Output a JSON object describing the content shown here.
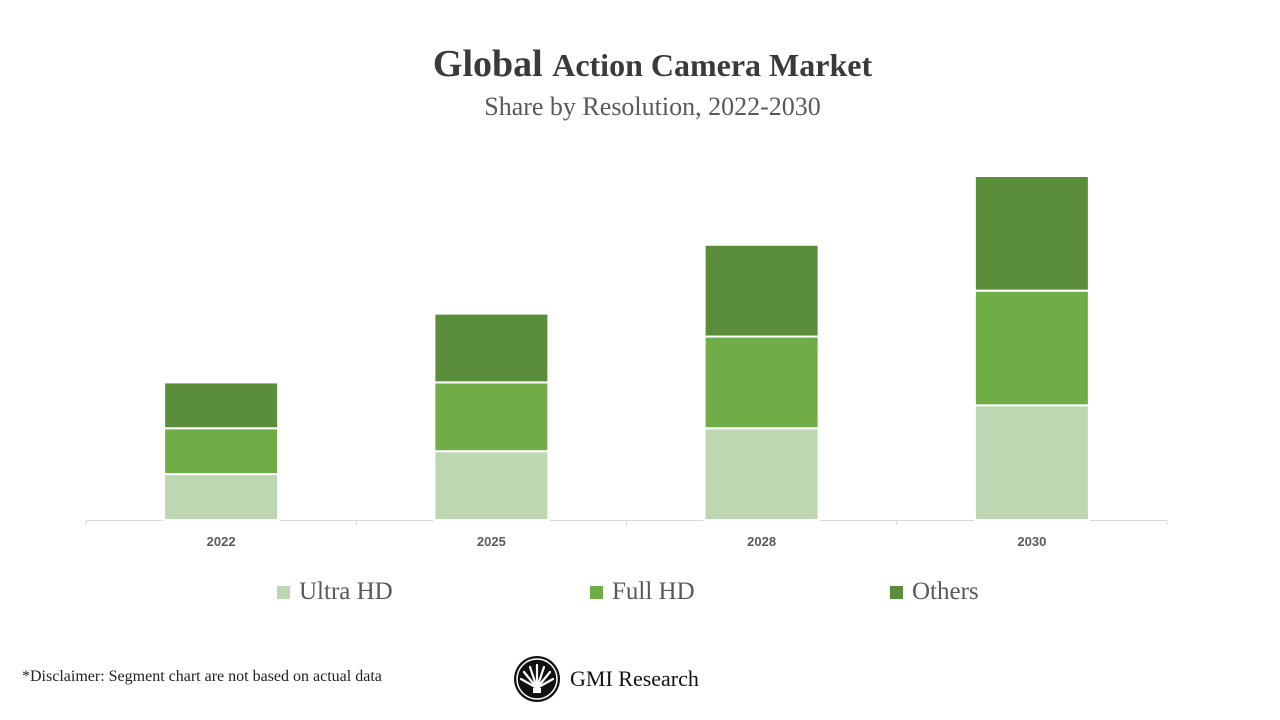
{
  "chart_data": {
    "type": "bar",
    "stacked": true,
    "title_part1": "Global",
    "title_part2": "Action Camera Market",
    "subtitle": "Share by Resolution, 2022-2030",
    "categories": [
      "2022",
      "2025",
      "2028",
      "2030"
    ],
    "series": [
      {
        "name": "Ultra HD",
        "color": "#bdd7b3",
        "values": [
          1,
          1.5,
          2,
          2.5
        ]
      },
      {
        "name": "Full HD",
        "color": "#70ad47",
        "values": [
          1,
          1.5,
          2,
          2.5
        ]
      },
      {
        "name": "Others",
        "color": "#5b8e3a",
        "values": [
          1,
          1.5,
          2,
          2.5
        ]
      }
    ],
    "ylim": [
      0,
      7.5
    ],
    "grid": false,
    "legend_position": "bottom"
  },
  "footer": {
    "disclaimer": "*Disclaimer:   Segment chart are not based on actual data",
    "brand": "GMI Research"
  }
}
